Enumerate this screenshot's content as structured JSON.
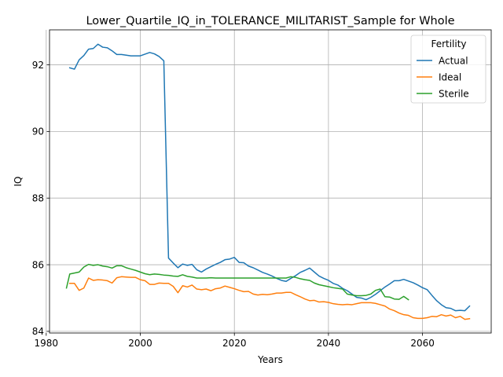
{
  "chart_data": {
    "type": "line",
    "title": "Lower_Quartile_IQ_in_TOLERANCE_MILITARIST_Sample for Whole",
    "xlabel": "Years",
    "ylabel": "IQ",
    "xlim": [
      1980.7,
      2074.6
    ],
    "ylim": [
      83.95,
      93.05
    ],
    "xticks": [
      1980,
      2000,
      2020,
      2040,
      2060
    ],
    "yticks": [
      84,
      86,
      88,
      90,
      92
    ],
    "grid": true,
    "legend": {
      "title": "Fertility",
      "placement": "upper right"
    },
    "series": [
      {
        "name": "Actual",
        "color": "#1f77b4",
        "x": [
          1985,
          1986,
          1987,
          1988,
          1989,
          1990,
          1991,
          1992,
          1993,
          1994,
          1995,
          1996,
          1997,
          1998,
          1999,
          2000,
          2001,
          2002,
          2003,
          2004,
          2005,
          2006,
          2007,
          2008,
          2009,
          2010,
          2011,
          2012,
          2013,
          2014,
          2015,
          2016,
          2017,
          2018,
          2019,
          2020,
          2021,
          2022,
          2023,
          2024,
          2025,
          2026,
          2027,
          2028,
          2029,
          2030,
          2031,
          2032,
          2033,
          2034,
          2035,
          2036,
          2037,
          2038,
          2039,
          2040,
          2041,
          2042,
          2043,
          2044,
          2045,
          2046,
          2047,
          2048,
          2049,
          2050,
          2051,
          2052,
          2053,
          2054,
          2055,
          2056,
          2057,
          2058,
          2059,
          2060,
          2061,
          2062,
          2063,
          2064,
          2065,
          2066,
          2067,
          2068,
          2069,
          2070
        ],
        "y": [
          91.91,
          91.87,
          92.15,
          92.28,
          92.47,
          92.49,
          92.62,
          92.53,
          92.51,
          92.42,
          92.31,
          92.31,
          92.29,
          92.27,
          92.27,
          92.27,
          92.32,
          92.37,
          92.33,
          92.25,
          92.12,
          86.2,
          86.05,
          85.91,
          86.02,
          85.98,
          86.01,
          85.85,
          85.78,
          85.87,
          85.94,
          86.01,
          86.07,
          86.15,
          86.17,
          86.22,
          86.07,
          86.06,
          85.96,
          85.91,
          85.84,
          85.77,
          85.72,
          85.66,
          85.59,
          85.53,
          85.5,
          85.59,
          85.67,
          85.77,
          85.83,
          85.9,
          85.78,
          85.66,
          85.59,
          85.53,
          85.44,
          85.39,
          85.29,
          85.22,
          85.12,
          85.02,
          85.0,
          84.95,
          85.02,
          85.11,
          85.22,
          85.33,
          85.42,
          85.52,
          85.52,
          85.56,
          85.51,
          85.46,
          85.39,
          85.31,
          85.25,
          85.08,
          84.92,
          84.8,
          84.71,
          84.69,
          84.62,
          84.63,
          84.62,
          84.76
        ]
      },
      {
        "name": "Ideal",
        "color": "#ff7f0e",
        "x": [
          1985,
          1986,
          1987,
          1988,
          1989,
          1990,
          1991,
          1992,
          1993,
          1994,
          1995,
          1996,
          1997,
          1998,
          1999,
          2000,
          2001,
          2002,
          2003,
          2004,
          2005,
          2006,
          2007,
          2008,
          2009,
          2010,
          2011,
          2012,
          2013,
          2014,
          2015,
          2016,
          2017,
          2018,
          2019,
          2020,
          2021,
          2022,
          2023,
          2024,
          2025,
          2026,
          2027,
          2028,
          2029,
          2030,
          2031,
          2032,
          2033,
          2034,
          2035,
          2036,
          2037,
          2038,
          2039,
          2040,
          2041,
          2042,
          2043,
          2044,
          2045,
          2046,
          2047,
          2048,
          2049,
          2050,
          2051,
          2052,
          2053,
          2054,
          2055,
          2056,
          2057,
          2058,
          2059,
          2060,
          2061,
          2062,
          2063,
          2064,
          2065,
          2066,
          2067,
          2068,
          2069,
          2070
        ],
        "y": [
          85.44,
          85.44,
          85.23,
          85.3,
          85.6,
          85.53,
          85.55,
          85.54,
          85.52,
          85.45,
          85.61,
          85.64,
          85.63,
          85.62,
          85.62,
          85.55,
          85.52,
          85.41,
          85.41,
          85.45,
          85.44,
          85.44,
          85.35,
          85.16,
          85.37,
          85.33,
          85.39,
          85.27,
          85.25,
          85.27,
          85.22,
          85.28,
          85.3,
          85.36,
          85.32,
          85.28,
          85.23,
          85.19,
          85.2,
          85.12,
          85.09,
          85.11,
          85.1,
          85.12,
          85.15,
          85.15,
          85.17,
          85.17,
          85.1,
          85.04,
          84.97,
          84.92,
          84.93,
          84.88,
          84.89,
          84.87,
          84.83,
          84.81,
          84.8,
          84.81,
          84.8,
          84.83,
          84.86,
          84.86,
          84.86,
          84.84,
          84.8,
          84.76,
          84.67,
          84.62,
          84.55,
          84.5,
          84.48,
          84.41,
          84.39,
          84.39,
          84.41,
          84.45,
          84.44,
          84.5,
          84.46,
          84.49,
          84.41,
          84.45,
          84.36,
          84.38
        ]
      },
      {
        "name": "Sterile",
        "color": "#2ca02c",
        "x": [
          1984.3,
          1985,
          1986,
          1987,
          1988,
          1989,
          1990,
          1991,
          1992,
          1993,
          1994,
          1995,
          1996,
          1997,
          1998,
          1999,
          2000,
          2001,
          2002,
          2003,
          2004,
          2005,
          2006,
          2007,
          2008,
          2009,
          2010,
          2011,
          2012,
          2013,
          2014,
          2015,
          2016,
          2017,
          2018,
          2019,
          2020,
          2021,
          2022,
          2023,
          2024,
          2025,
          2026,
          2027,
          2028,
          2029,
          2030,
          2031,
          2032,
          2033,
          2034,
          2035,
          2036,
          2037,
          2038,
          2039,
          2040,
          2041,
          2042,
          2043,
          2044,
          2045,
          2046,
          2047,
          2048,
          2049,
          2050,
          2051,
          2052,
          2053,
          2054,
          2055,
          2056,
          2057
        ],
        "y": [
          85.3,
          85.72,
          85.75,
          85.78,
          85.93,
          86.01,
          85.98,
          86.0,
          85.96,
          85.94,
          85.9,
          85.97,
          85.97,
          85.91,
          85.87,
          85.83,
          85.78,
          85.73,
          85.7,
          85.72,
          85.71,
          85.69,
          85.68,
          85.66,
          85.65,
          85.7,
          85.65,
          85.63,
          85.6,
          85.6,
          85.6,
          85.61,
          85.6,
          85.6,
          85.6,
          85.6,
          85.6,
          85.6,
          85.6,
          85.6,
          85.6,
          85.6,
          85.6,
          85.6,
          85.6,
          85.6,
          85.6,
          85.6,
          85.64,
          85.62,
          85.58,
          85.55,
          85.53,
          85.45,
          85.4,
          85.37,
          85.34,
          85.31,
          85.29,
          85.27,
          85.12,
          85.09,
          85.07,
          85.07,
          85.08,
          85.12,
          85.23,
          85.27,
          85.04,
          85.03,
          84.97,
          84.96,
          85.05,
          84.95
        ]
      }
    ]
  }
}
